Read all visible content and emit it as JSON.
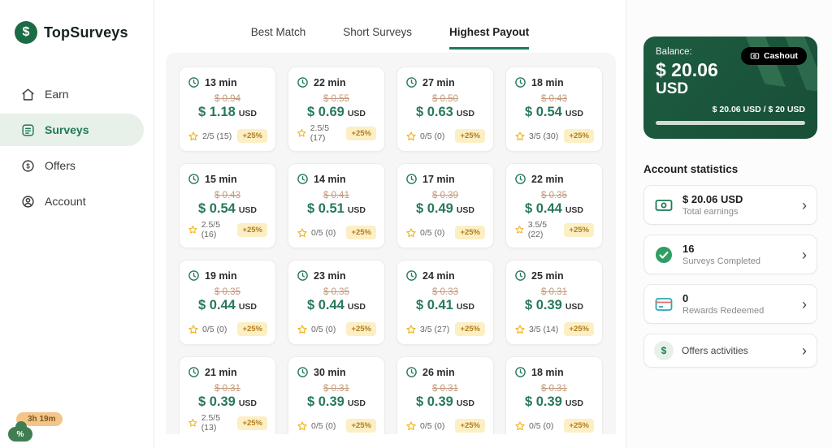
{
  "brand": {
    "name": "TopSurveys",
    "symbol": "$"
  },
  "sidebar": {
    "items": [
      {
        "label": "Earn"
      },
      {
        "label": "Surveys",
        "active": true
      },
      {
        "label": "Offers"
      },
      {
        "label": "Account"
      }
    ],
    "timer": "3h 19m",
    "timer_icon": "%"
  },
  "tabs": [
    {
      "label": "Best Match"
    },
    {
      "label": "Short Surveys"
    },
    {
      "label": "Highest Payout",
      "active": true
    }
  ],
  "surveys": [
    {
      "time": "13 min",
      "old": "$ 0.94",
      "price": "$ 1.18",
      "currency": "USD",
      "rating": "2/5 (15)",
      "bonus": "+25%"
    },
    {
      "time": "22 min",
      "old": "$ 0.55",
      "price": "$ 0.69",
      "currency": "USD",
      "rating": "2.5/5 (17)",
      "bonus": "+25%"
    },
    {
      "time": "27 min",
      "old": "$ 0.50",
      "price": "$ 0.63",
      "currency": "USD",
      "rating": "0/5 (0)",
      "bonus": "+25%"
    },
    {
      "time": "18 min",
      "old": "$ 0.43",
      "price": "$ 0.54",
      "currency": "USD",
      "rating": "3/5 (30)",
      "bonus": "+25%"
    },
    {
      "time": "15 min",
      "old": "$ 0.43",
      "price": "$ 0.54",
      "currency": "USD",
      "rating": "2.5/5 (16)",
      "bonus": "+25%"
    },
    {
      "time": "14 min",
      "old": "$ 0.41",
      "price": "$ 0.51",
      "currency": "USD",
      "rating": "0/5 (0)",
      "bonus": "+25%"
    },
    {
      "time": "17 min",
      "old": "$ 0.39",
      "price": "$ 0.49",
      "currency": "USD",
      "rating": "0/5 (0)",
      "bonus": "+25%"
    },
    {
      "time": "22 min",
      "old": "$ 0.35",
      "price": "$ 0.44",
      "currency": "USD",
      "rating": "3.5/5 (22)",
      "bonus": "+25%"
    },
    {
      "time": "19 min",
      "old": "$ 0.35",
      "price": "$ 0.44",
      "currency": "USD",
      "rating": "0/5 (0)",
      "bonus": "+25%"
    },
    {
      "time": "23 min",
      "old": "$ 0.35",
      "price": "$ 0.44",
      "currency": "USD",
      "rating": "0/5 (0)",
      "bonus": "+25%"
    },
    {
      "time": "24 min",
      "old": "$ 0.33",
      "price": "$ 0.41",
      "currency": "USD",
      "rating": "3/5 (27)",
      "bonus": "+25%"
    },
    {
      "time": "25 min",
      "old": "$ 0.31",
      "price": "$ 0.39",
      "currency": "USD",
      "rating": "3/5 (14)",
      "bonus": "+25%"
    },
    {
      "time": "21 min",
      "old": "$ 0.31",
      "price": "$ 0.39",
      "currency": "USD",
      "rating": "2.5/5 (13)",
      "bonus": "+25%"
    },
    {
      "time": "30 min",
      "old": "$ 0.31",
      "price": "$ 0.39",
      "currency": "USD",
      "rating": "0/5 (0)",
      "bonus": "+25%"
    },
    {
      "time": "26 min",
      "old": "$ 0.31",
      "price": "$ 0.39",
      "currency": "USD",
      "rating": "0/5 (0)",
      "bonus": "+25%"
    },
    {
      "time": "18 min",
      "old": "$ 0.31",
      "price": "$ 0.39",
      "currency": "USD",
      "rating": "0/5 (0)",
      "bonus": "+25%"
    }
  ],
  "balance": {
    "label": "Balance:",
    "amount": "$ 20.06",
    "currency": "USD",
    "cashout_label": "Cashout",
    "progress_text": "$ 20.06 USD / $ 20 USD",
    "progress_pct": 100
  },
  "stats": {
    "title": "Account statistics",
    "items": [
      {
        "value": "$ 20.06 USD",
        "label": "Total earnings"
      },
      {
        "value": "16",
        "label": "Surveys Completed"
      },
      {
        "value": "0",
        "label": "Rewards Redeemed"
      }
    ],
    "offers": {
      "label": "Offers activities",
      "symbol": "$"
    }
  },
  "colors": {
    "brand_green": "#1f7a55",
    "balance_card": "#1d5c40",
    "price_green": "#27795a",
    "old_price": "#c49a7b",
    "bonus_bg": "#fdefc4",
    "bonus_text": "#b07c1f"
  }
}
